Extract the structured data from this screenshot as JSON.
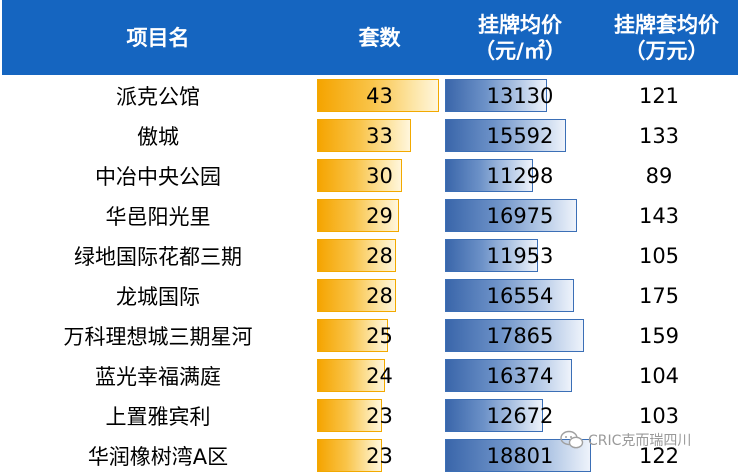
{
  "header": {
    "col_name": "项目名",
    "col_count": "套数",
    "col_price_l1": "挂牌均价",
    "col_price_l2": "（元/㎡）",
    "col_total_l1": "挂牌套均价",
    "col_total_l2": "（万元）"
  },
  "rows": [
    {
      "name": "派克公馆",
      "count": "43",
      "price": "13130",
      "total": "121"
    },
    {
      "name": "傲城",
      "count": "33",
      "price": "15592",
      "total": "133"
    },
    {
      "name": "中冶中央公园",
      "count": "30",
      "price": "11298",
      "total": "89"
    },
    {
      "name": "华邑阳光里",
      "count": "29",
      "price": "16975",
      "total": "143"
    },
    {
      "name": "绿地国际花都三期",
      "count": "28",
      "price": "11953",
      "total": "105"
    },
    {
      "name": "龙城国际",
      "count": "28",
      "price": "16554",
      "total": "175"
    },
    {
      "name": "万科理想城三期星河",
      "count": "25",
      "price": "17865",
      "total": "159"
    },
    {
      "name": "蓝光幸福满庭",
      "count": "24",
      "price": "16374",
      "total": "104"
    },
    {
      "name": "上置雅宾利",
      "count": "23",
      "price": "12672",
      "total": "103"
    },
    {
      "name": "华润橡树湾A区",
      "count": "23",
      "price": "18801",
      "total": "122"
    }
  ],
  "watermark": {
    "text": "CRIC克而瑞四川",
    "icon": "wechat-icon"
  },
  "colors": {
    "header_bg": "#1565c0",
    "count_bar": "#f5a400",
    "price_bar": "#3a66aa"
  }
}
